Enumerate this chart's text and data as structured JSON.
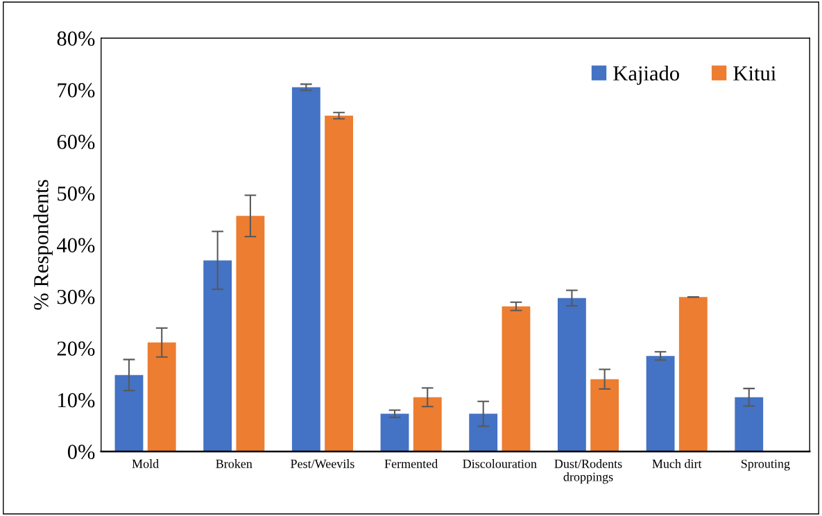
{
  "chart_data": {
    "type": "bar",
    "ylabel": "% Respondents",
    "categories": [
      "Mold",
      "Broken",
      "Pest/Weevils",
      "Fermented",
      "Discolouration",
      "Dust/Rodents\ndroppings",
      "Much dirt",
      "Sprouting"
    ],
    "series": [
      {
        "name": "Kajiado",
        "color": "#4472c4",
        "values": [
          14.8,
          37.0,
          70.5,
          7.3,
          7.3,
          29.7,
          18.5,
          10.5
        ],
        "errors": [
          3.0,
          5.6,
          0.6,
          0.7,
          2.4,
          1.5,
          0.8,
          1.7
        ]
      },
      {
        "name": "Kitui",
        "color": "#ed7d31",
        "values": [
          21.1,
          45.6,
          65.0,
          10.5,
          28.1,
          14.0,
          29.9,
          0
        ],
        "errors": [
          2.8,
          4.0,
          0.6,
          1.8,
          0.8,
          1.9,
          0,
          0
        ]
      }
    ],
    "ylim": [
      0,
      80
    ],
    "yticks": [
      {
        "value": 0,
        "label": "0%"
      },
      {
        "value": 10,
        "label": "10%"
      },
      {
        "value": 20,
        "label": "20%"
      },
      {
        "value": 30,
        "label": "30%"
      },
      {
        "value": 40,
        "label": "40%"
      },
      {
        "value": 50,
        "label": "50%"
      },
      {
        "value": 60,
        "label": "60%"
      },
      {
        "value": 70,
        "label": "70%"
      },
      {
        "value": 80,
        "label": "80%"
      }
    ],
    "grid": false,
    "legend": "top right"
  }
}
